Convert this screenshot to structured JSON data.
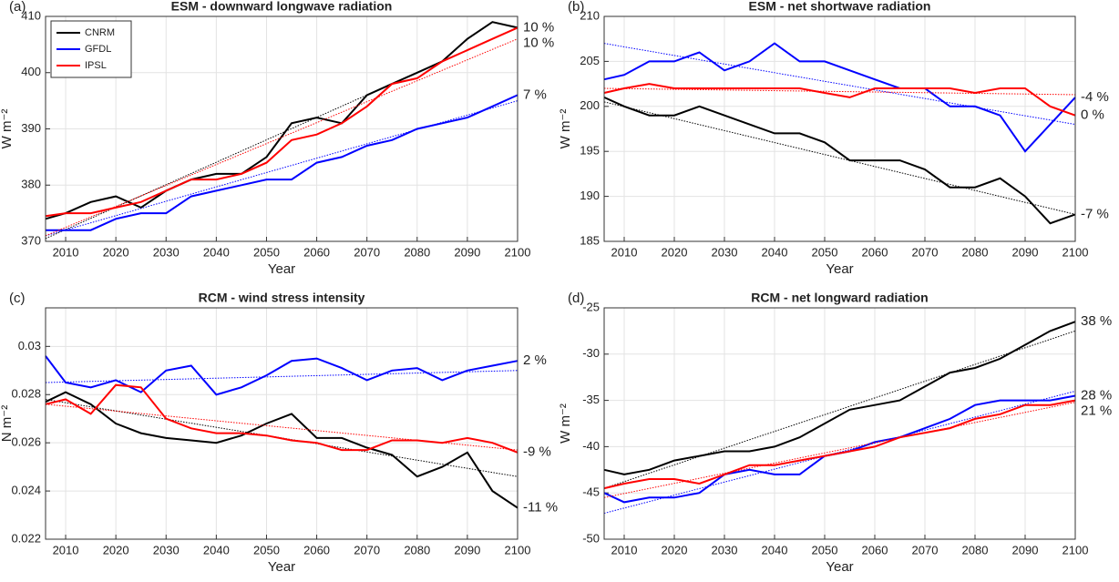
{
  "chart_data": [
    {
      "type": "line",
      "panel_label": "(a)",
      "title": "ESM - downward longwave radiation",
      "xlabel": "Year",
      "ylabel": "W m⁻²",
      "x": [
        2006,
        2010,
        2015,
        2020,
        2025,
        2030,
        2035,
        2040,
        2045,
        2050,
        2055,
        2060,
        2065,
        2070,
        2075,
        2080,
        2085,
        2090,
        2095,
        2100
      ],
      "xlim": [
        2006,
        2100
      ],
      "xticks": [
        2010,
        2020,
        2030,
        2040,
        2050,
        2060,
        2070,
        2080,
        2090,
        2100
      ],
      "ylim": [
        370,
        410
      ],
      "yticks": [
        370,
        380,
        390,
        400,
        410
      ],
      "grid": true,
      "legend": "upper left",
      "series": [
        {
          "name": "CNRM",
          "color": "#000000",
          "change_label": "10 %",
          "trend": [
            370.5,
            408
          ],
          "values": [
            374,
            375,
            377,
            378,
            376,
            379,
            381,
            382,
            382,
            385,
            391,
            392,
            391,
            396,
            398,
            400,
            402,
            406,
            409,
            408
          ]
        },
        {
          "name": "GFDL",
          "color": "#0000ff",
          "change_label": "7 %",
          "trend": [
            371,
            395
          ],
          "values": [
            372,
            372,
            372,
            374,
            375,
            375,
            378,
            379,
            380,
            381,
            381,
            384,
            385,
            387,
            388,
            390,
            391,
            392,
            394,
            396
          ]
        },
        {
          "name": "IPSL",
          "color": "#ff0000",
          "change_label": "10 %",
          "trend": [
            371,
            406
          ],
          "values": [
            374.5,
            375,
            375,
            376,
            377,
            379,
            381,
            381,
            382,
            384,
            388,
            389,
            391,
            394,
            398,
            399,
            402,
            404,
            406,
            408
          ]
        }
      ]
    },
    {
      "type": "line",
      "panel_label": "(b)",
      "title": "ESM - net shortwave radiation",
      "xlabel": "Year",
      "ylabel": "W m⁻²",
      "x": [
        2006,
        2010,
        2015,
        2020,
        2025,
        2030,
        2035,
        2040,
        2045,
        2050,
        2055,
        2060,
        2065,
        2070,
        2075,
        2080,
        2085,
        2090,
        2095,
        2100
      ],
      "xlim": [
        2006,
        2100
      ],
      "xticks": [
        2010,
        2020,
        2030,
        2040,
        2050,
        2060,
        2070,
        2080,
        2090,
        2100
      ],
      "ylim": [
        185,
        210
      ],
      "yticks": [
        185,
        190,
        195,
        200,
        205,
        210
      ],
      "grid": true,
      "series": [
        {
          "name": "CNRM",
          "color": "#000000",
          "change_label": "-7 %",
          "trend": [
            200.5,
            188
          ],
          "values": [
            201,
            200,
            199,
            199,
            200,
            199,
            198,
            197,
            197,
            196,
            194,
            194,
            194,
            193,
            191,
            191,
            192,
            190,
            187,
            188
          ]
        },
        {
          "name": "GFDL",
          "color": "#0000ff",
          "change_label": "-4 %",
          "trend": [
            207,
            198
          ],
          "values": [
            203,
            203.5,
            205,
            205,
            206,
            204,
            205,
            207,
            205,
            205,
            204,
            203,
            202,
            202,
            200,
            200,
            199,
            195,
            198,
            201
          ]
        },
        {
          "name": "IPSL",
          "color": "#ff0000",
          "change_label": "0 %",
          "trend": [
            202,
            201.3
          ],
          "values": [
            201.5,
            202,
            202.5,
            202,
            202,
            202,
            202,
            202,
            202,
            201.5,
            201,
            202,
            202,
            202,
            202,
            201.5,
            202,
            202,
            200,
            199
          ]
        }
      ]
    },
    {
      "type": "line",
      "panel_label": "(c)",
      "title": "RCM - wind stress intensity",
      "xlabel": "Year",
      "ylabel": "N m⁻²",
      "x": [
        2006,
        2010,
        2015,
        2020,
        2025,
        2030,
        2035,
        2040,
        2045,
        2050,
        2055,
        2060,
        2065,
        2070,
        2075,
        2080,
        2085,
        2090,
        2095,
        2100
      ],
      "xlim": [
        2006,
        2100
      ],
      "xticks": [
        2010,
        2020,
        2030,
        2040,
        2050,
        2060,
        2070,
        2080,
        2090,
        2100
      ],
      "ylim": [
        0.022,
        0.0316
      ],
      "yticks": [
        0.022,
        0.024,
        0.026,
        0.028,
        0.03
      ],
      "grid": true,
      "series": [
        {
          "name": "CNRM",
          "color": "#000000",
          "change_label": "-11 %",
          "trend": [
            0.0278,
            0.0246
          ],
          "values": [
            0.0277,
            0.0281,
            0.0276,
            0.0268,
            0.0264,
            0.0262,
            0.0261,
            0.026,
            0.0263,
            0.0268,
            0.0272,
            0.0262,
            0.0262,
            0.0258,
            0.0255,
            0.0246,
            0.025,
            0.0256,
            0.024,
            0.0233
          ]
        },
        {
          "name": "GFDL",
          "color": "#0000ff",
          "change_label": "2 %",
          "trend": [
            0.0285,
            0.029
          ],
          "values": [
            0.0296,
            0.0285,
            0.0283,
            0.0286,
            0.0281,
            0.029,
            0.0292,
            0.028,
            0.0283,
            0.0288,
            0.0294,
            0.0295,
            0.0291,
            0.0286,
            0.029,
            0.0291,
            0.0286,
            0.029,
            0.0292,
            0.0294
          ]
        },
        {
          "name": "IPSL",
          "color": "#ff0000",
          "change_label": "-9 %",
          "trend": [
            0.0276,
            0.0257
          ],
          "values": [
            0.0276,
            0.0278,
            0.0272,
            0.0284,
            0.0283,
            0.027,
            0.0266,
            0.0264,
            0.0264,
            0.0263,
            0.0261,
            0.026,
            0.0257,
            0.0257,
            0.0261,
            0.0261,
            0.026,
            0.0262,
            0.026,
            0.0256
          ]
        }
      ]
    },
    {
      "type": "line",
      "panel_label": "(d)",
      "title": "RCM - net longward radiation",
      "xlabel": "Year",
      "ylabel": "W m⁻²",
      "x": [
        2006,
        2010,
        2015,
        2020,
        2025,
        2030,
        2035,
        2040,
        2045,
        2050,
        2055,
        2060,
        2065,
        2070,
        2075,
        2080,
        2085,
        2090,
        2095,
        2100
      ],
      "xlim": [
        2006,
        2100
      ],
      "xticks": [
        2010,
        2020,
        2030,
        2040,
        2050,
        2060,
        2070,
        2080,
        2090,
        2100
      ],
      "ylim": [
        -50,
        -25
      ],
      "yticks": [
        -50,
        -45,
        -40,
        -35,
        -30,
        -25
      ],
      "grid": true,
      "series": [
        {
          "name": "CNRM",
          "color": "#000000",
          "change_label": "38 %",
          "trend": [
            -44.5,
            -27.5
          ],
          "values": [
            -42.5,
            -43,
            -42.5,
            -41.5,
            -41,
            -40.5,
            -40.5,
            -40,
            -39,
            -37.5,
            -36,
            -35.5,
            -35,
            -33.5,
            -32,
            -31.5,
            -30.5,
            -29,
            -27.5,
            -26.5
          ]
        },
        {
          "name": "GFDL",
          "color": "#0000ff",
          "change_label": "28 %",
          "trend": [
            -47.2,
            -34
          ],
          "values": [
            -45,
            -46,
            -45.5,
            -45.5,
            -45,
            -43,
            -42.5,
            -43,
            -43,
            -41,
            -40.5,
            -39.5,
            -39,
            -38,
            -37,
            -35.5,
            -35,
            -35,
            -35,
            -34.5
          ]
        },
        {
          "name": "IPSL",
          "color": "#ff0000",
          "change_label": "21 %",
          "trend": [
            -45.5,
            -35.2
          ],
          "values": [
            -44.5,
            -44,
            -43.5,
            -43.5,
            -44,
            -43,
            -42,
            -42,
            -41.5,
            -41,
            -40.5,
            -40,
            -39,
            -38.5,
            -38,
            -37,
            -36.5,
            -35.5,
            -35.5,
            -35
          ]
        }
      ]
    }
  ]
}
